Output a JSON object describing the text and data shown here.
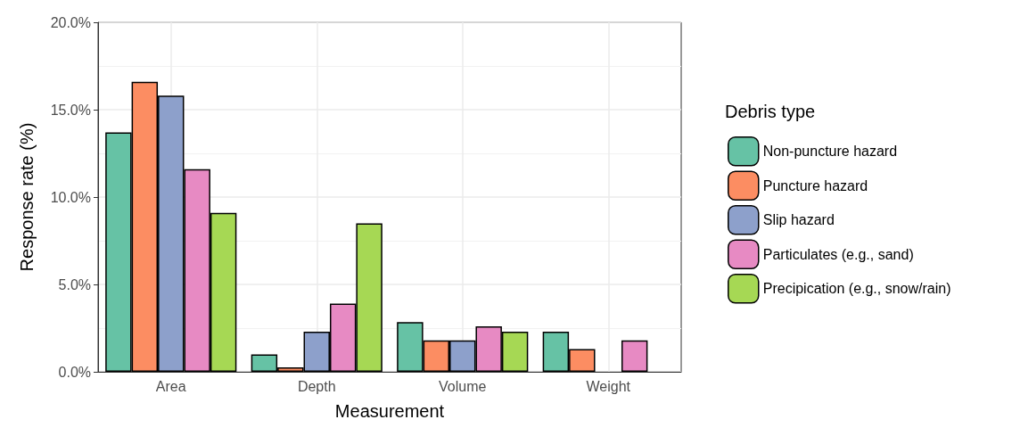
{
  "chart_data": {
    "type": "bar",
    "xlabel": "Measurement",
    "ylabel": "Response rate (%)",
    "legend_title": "Debris type",
    "categories": [
      "Area",
      "Depth",
      "Volume",
      "Weight"
    ],
    "series": [
      {
        "name": "Non-puncture hazard",
        "color": "#66c2a5",
        "values": [
          13.7,
          1.0,
          2.85,
          2.3
        ]
      },
      {
        "name": "Puncture hazard",
        "color": "#fc8d62",
        "values": [
          16.6,
          0.25,
          1.8,
          1.3
        ]
      },
      {
        "name": "Slip hazard",
        "color": "#8da0cb",
        "values": [
          15.8,
          2.3,
          1.8,
          null
        ]
      },
      {
        "name": "Particulates (e.g., sand)",
        "color": "#e78ac3",
        "values": [
          11.6,
          3.9,
          2.6,
          1.8
        ]
      },
      {
        "name": "Precipication (e.g., snow/rain)",
        "color": "#a6d854",
        "values": [
          9.1,
          8.5,
          2.3,
          null
        ]
      }
    ],
    "ylim": [
      0,
      20
    ],
    "yticks": [
      {
        "value": 0,
        "label": "0.0%"
      },
      {
        "value": 5,
        "label": "5.0%"
      },
      {
        "value": 10,
        "label": "10.0%"
      },
      {
        "value": 15,
        "label": "15.0%"
      },
      {
        "value": 20,
        "label": "20.0%"
      }
    ],
    "grid": true,
    "legend": "right"
  }
}
